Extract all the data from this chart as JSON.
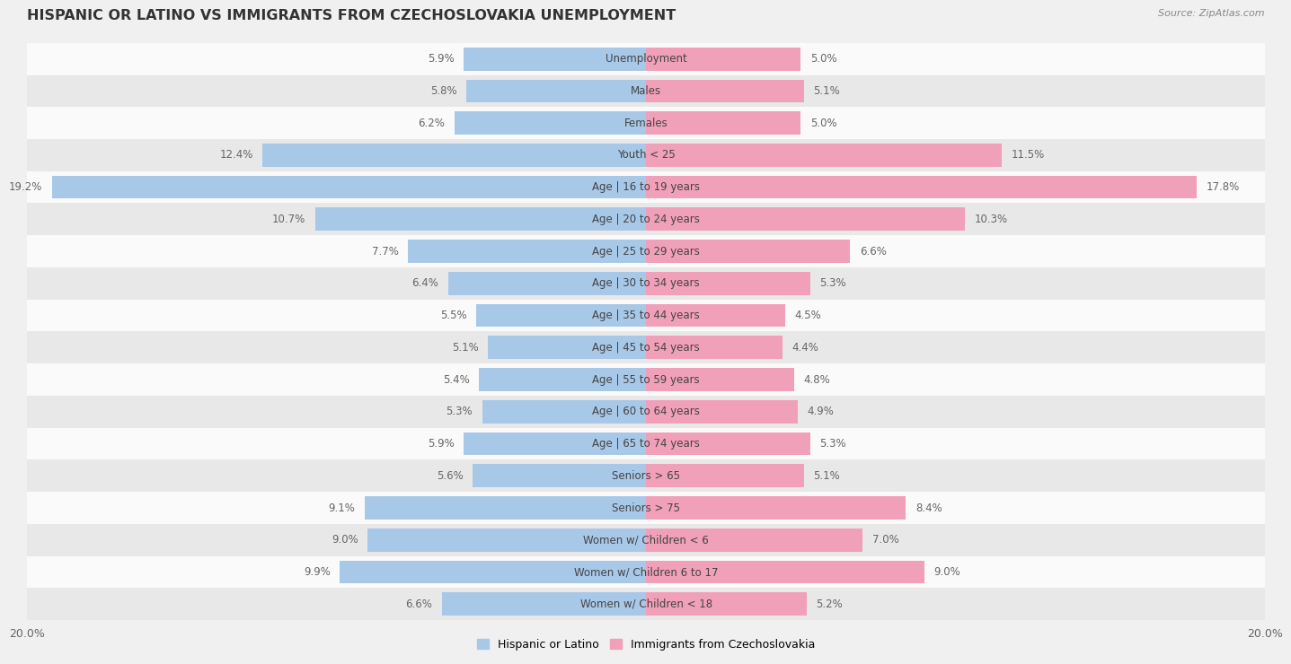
{
  "title": "HISPANIC OR LATINO VS IMMIGRANTS FROM CZECHOSLOVAKIA UNEMPLOYMENT",
  "source": "Source: ZipAtlas.com",
  "categories": [
    "Unemployment",
    "Males",
    "Females",
    "Youth < 25",
    "Age | 16 to 19 years",
    "Age | 20 to 24 years",
    "Age | 25 to 29 years",
    "Age | 30 to 34 years",
    "Age | 35 to 44 years",
    "Age | 45 to 54 years",
    "Age | 55 to 59 years",
    "Age | 60 to 64 years",
    "Age | 65 to 74 years",
    "Seniors > 65",
    "Seniors > 75",
    "Women w/ Children < 6",
    "Women w/ Children 6 to 17",
    "Women w/ Children < 18"
  ],
  "left_values": [
    5.9,
    5.8,
    6.2,
    12.4,
    19.2,
    10.7,
    7.7,
    6.4,
    5.5,
    5.1,
    5.4,
    5.3,
    5.9,
    5.6,
    9.1,
    9.0,
    9.9,
    6.6
  ],
  "right_values": [
    5.0,
    5.1,
    5.0,
    11.5,
    17.8,
    10.3,
    6.6,
    5.3,
    4.5,
    4.4,
    4.8,
    4.9,
    5.3,
    5.1,
    8.4,
    7.0,
    9.0,
    5.2
  ],
  "left_color": "#a8c8e8",
  "right_color": "#f0a0b8",
  "bar_height": 0.72,
  "xlim": 20.0,
  "left_label": "Hispanic or Latino",
  "right_label": "Immigrants from Czechoslovakia",
  "bg_color": "#f0f0f0",
  "row_colors": [
    "#fafafa",
    "#e8e8e8"
  ],
  "title_fontsize": 11.5,
  "label_fontsize": 8.5,
  "value_fontsize": 8.5,
  "axis_fontsize": 9
}
